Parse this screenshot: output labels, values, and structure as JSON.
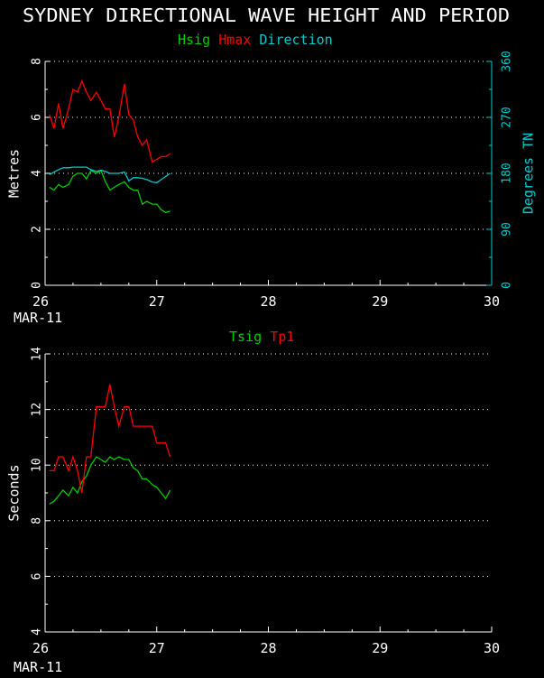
{
  "title": "SYDNEY DIRECTIONAL WAVE HEIGHT AND PERIOD",
  "colors": {
    "background": "#000000",
    "axis": "#ffffff",
    "green": "#00cc00",
    "red": "#ff0000",
    "cyan": "#00cccc",
    "grid": "#ffffff"
  },
  "chart_data": [
    {
      "type": "line",
      "legend": [
        {
          "label": "Hsig",
          "color": "#00cc00"
        },
        {
          "label": "Hmax",
          "color": "#ff0000"
        },
        {
          "label": "Direction",
          "color": "#00cccc"
        }
      ],
      "ylabel": "Metres",
      "y2label": "Degrees TN",
      "ylim": [
        0,
        8
      ],
      "y2lim": [
        0,
        360
      ],
      "xlim": [
        26,
        30
      ],
      "x_ticks": [
        "26",
        "27",
        "28",
        "29",
        "30"
      ],
      "y_ticks": [
        "0",
        "2",
        "4",
        "6",
        "8"
      ],
      "y2_ticks": [
        "0",
        "90",
        "180",
        "270",
        "360"
      ],
      "date_label": "MAR-11",
      "grid": true,
      "series": [
        {
          "name": "Hsig",
          "axis": "left",
          "color": "#00cc00",
          "x": [
            26.04,
            26.08,
            26.12,
            26.16,
            26.21,
            26.25,
            26.29,
            26.33,
            26.37,
            26.41,
            26.46,
            26.5,
            26.54,
            26.58,
            26.62,
            26.66,
            26.71,
            26.75,
            26.79,
            26.83,
            26.87,
            26.91,
            26.96,
            27.0,
            27.04,
            27.08,
            27.12
          ],
          "values": [
            3.5,
            3.4,
            3.6,
            3.5,
            3.6,
            3.9,
            4.0,
            4.0,
            3.8,
            4.1,
            4.0,
            4.1,
            3.7,
            3.4,
            3.5,
            3.6,
            3.7,
            3.5,
            3.4,
            3.4,
            2.9,
            3.0,
            2.9,
            2.9,
            2.7,
            2.6,
            2.65
          ]
        },
        {
          "name": "Hmax",
          "axis": "left",
          "color": "#ff0000",
          "x": [
            26.04,
            26.08,
            26.12,
            26.16,
            26.21,
            26.25,
            26.29,
            26.33,
            26.37,
            26.41,
            26.46,
            26.5,
            26.54,
            26.58,
            26.62,
            26.66,
            26.71,
            26.75,
            26.79,
            26.83,
            26.87,
            26.91,
            26.96,
            27.0,
            27.04,
            27.08,
            27.12
          ],
          "values": [
            6.1,
            5.6,
            6.5,
            5.6,
            6.3,
            7.0,
            6.9,
            7.3,
            6.9,
            6.6,
            6.9,
            6.6,
            6.3,
            6.3,
            5.3,
            6.0,
            7.2,
            6.1,
            5.9,
            5.3,
            5.0,
            5.2,
            4.4,
            4.5,
            4.6,
            4.6,
            4.7
          ]
        },
        {
          "name": "Direction",
          "axis": "right",
          "color": "#00cccc",
          "x": [
            26.04,
            26.08,
            26.12,
            26.16,
            26.21,
            26.25,
            26.29,
            26.33,
            26.37,
            26.41,
            26.46,
            26.5,
            26.54,
            26.58,
            26.62,
            26.66,
            26.71,
            26.75,
            26.79,
            26.83,
            26.87,
            26.91,
            26.96,
            27.0,
            27.04,
            27.08,
            27.12
          ],
          "values": [
            178,
            182,
            186,
            189,
            189,
            190,
            190,
            190,
            190,
            186,
            183,
            185,
            183,
            180,
            180,
            180,
            182,
            168,
            173,
            173,
            172,
            170,
            166,
            165,
            170,
            175,
            180
          ]
        }
      ]
    },
    {
      "type": "line",
      "legend": [
        {
          "label": "Tsig",
          "color": "#00cc00"
        },
        {
          "label": "Tp1",
          "color": "#ff0000"
        }
      ],
      "ylabel": "Seconds",
      "ylim": [
        4,
        14
      ],
      "xlim": [
        26,
        30
      ],
      "x_ticks": [
        "26",
        "27",
        "28",
        "29",
        "30"
      ],
      "y_ticks": [
        "4",
        "6",
        "8",
        "10",
        "12",
        "14"
      ],
      "date_label": "MAR-11",
      "grid": true,
      "series": [
        {
          "name": "Tsig",
          "color": "#00cc00",
          "x": [
            26.04,
            26.08,
            26.12,
            26.16,
            26.21,
            26.25,
            26.29,
            26.33,
            26.37,
            26.41,
            26.46,
            26.5,
            26.54,
            26.58,
            26.62,
            26.66,
            26.71,
            26.75,
            26.79,
            26.83,
            26.87,
            26.91,
            26.96,
            27.0,
            27.04,
            27.08,
            27.12
          ],
          "values": [
            8.6,
            8.7,
            8.9,
            9.1,
            8.9,
            9.2,
            9.0,
            9.4,
            9.6,
            10.0,
            10.3,
            10.2,
            10.1,
            10.3,
            10.2,
            10.3,
            10.2,
            10.2,
            9.9,
            9.8,
            9.5,
            9.5,
            9.3,
            9.2,
            9.0,
            8.8,
            9.1
          ]
        },
        {
          "name": "Tp1",
          "color": "#ff0000",
          "x": [
            26.04,
            26.08,
            26.12,
            26.16,
            26.21,
            26.25,
            26.29,
            26.33,
            26.37,
            26.41,
            26.46,
            26.5,
            26.54,
            26.58,
            26.62,
            26.66,
            26.71,
            26.75,
            26.79,
            26.83,
            26.87,
            26.91,
            26.96,
            27.0,
            27.04,
            27.08,
            27.12
          ],
          "values": [
            9.8,
            9.8,
            10.3,
            10.3,
            9.8,
            10.3,
            9.8,
            9.0,
            10.3,
            10.3,
            12.1,
            12.1,
            12.1,
            12.9,
            12.1,
            11.4,
            12.1,
            12.1,
            11.4,
            11.4,
            11.4,
            11.4,
            11.4,
            10.8,
            10.8,
            10.8,
            10.3
          ]
        }
      ]
    }
  ]
}
